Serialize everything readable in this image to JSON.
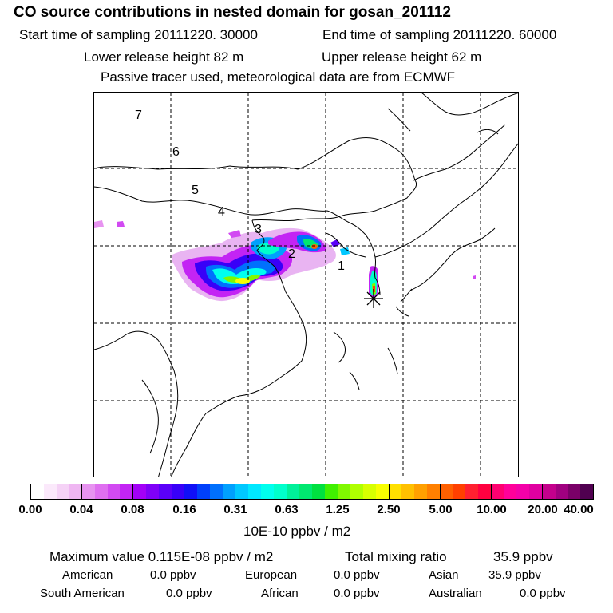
{
  "header": {
    "title": "CO  source contributions in nested domain for gosan_201112",
    "start_label": "Start time of sampling 20111220. 30000",
    "end_label": "End time of sampling 20111220. 60000",
    "lower_label": "Lower release height   82 m",
    "upper_label": "Upper release height   62 m",
    "tracer_label": "Passive tracer used, meteorological data are from ECMWF"
  },
  "map": {
    "region_numbers": [
      "7",
      "6",
      "5",
      "4",
      "3",
      "2",
      "1"
    ],
    "receptor_marker": "asterisk-marker"
  },
  "colorbar": {
    "ticks": [
      "0.00",
      "0.04",
      "0.08",
      "0.16",
      "0.31",
      "0.63",
      "1.25",
      "2.50",
      "5.00",
      "10.00",
      "20.00",
      "40.00"
    ],
    "colors": [
      [
        "#ffffff",
        "#fbe9fb",
        "#f5d2f6",
        "#efb6f2"
      ],
      [
        "#e793f0",
        "#df6ff0",
        "#d24af2",
        "#c324f4"
      ],
      [
        "#a300f7",
        "#7f00f8",
        "#5a00f9",
        "#3800f8"
      ],
      [
        "#1010f7",
        "#0040fb",
        "#0070fd",
        "#00a0fe"
      ],
      [
        "#00c8ff",
        "#00e8ff",
        "#00ffee",
        "#00ffcc"
      ],
      [
        "#00f09a",
        "#00e870",
        "#00e040",
        "#40f000"
      ],
      [
        "#80f800",
        "#b0ff00",
        "#d8ff00",
        "#f8ff00"
      ],
      [
        "#ffe000",
        "#ffc000",
        "#ffa000",
        "#ff8000"
      ],
      [
        "#ff6000",
        "#ff4000",
        "#ff2030",
        "#ff0040"
      ],
      [
        "#ff0070",
        "#ff009a",
        "#f400a8",
        "#e000a0"
      ],
      [
        "#c4008c",
        "#a00080",
        "#7a0068",
        "#500050"
      ]
    ],
    "units": "10E-10 ppbv / m2"
  },
  "summary": {
    "max_label": "Maximum value  0.115E-08 ppbv / m2",
    "total_label": "Total mixing ratio",
    "total_value": "35.9 ppbv",
    "american_label": "American",
    "american_value": "0.0 ppbv",
    "european_label": "European",
    "european_value": "0.0 ppbv",
    "asian_label": "Asian",
    "asian_value": "35.9 ppbv",
    "south_american_label": "South American",
    "south_american_value": "0.0 ppbv",
    "african_label": "African",
    "african_value": "0.0 ppbv",
    "australian_label": "Australian",
    "australian_value": "0.0 ppbv"
  }
}
